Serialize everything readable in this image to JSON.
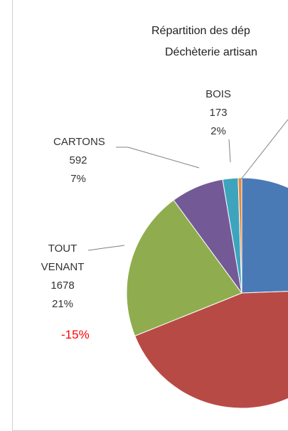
{
  "chart_data": {
    "type": "pie",
    "title_lines": [
      "Répartition des dép",
      "Déchèterie artisan"
    ],
    "categories": [
      null,
      null,
      "TOUT VENANT",
      "CARTONS",
      "BOIS",
      null
    ],
    "values": [
      1950,
      3557,
      1678,
      592,
      173,
      40
    ],
    "percent_labels": [
      null,
      null,
      "21%",
      "7%",
      "2%",
      null
    ],
    "colors": [
      "#4a7ab5",
      "#b84a46",
      "#8fad4e",
      "#735a96",
      "#3ea4bd",
      "#e8873a"
    ],
    "annotation": "-15%",
    "annotation_color": "#ff0000"
  }
}
